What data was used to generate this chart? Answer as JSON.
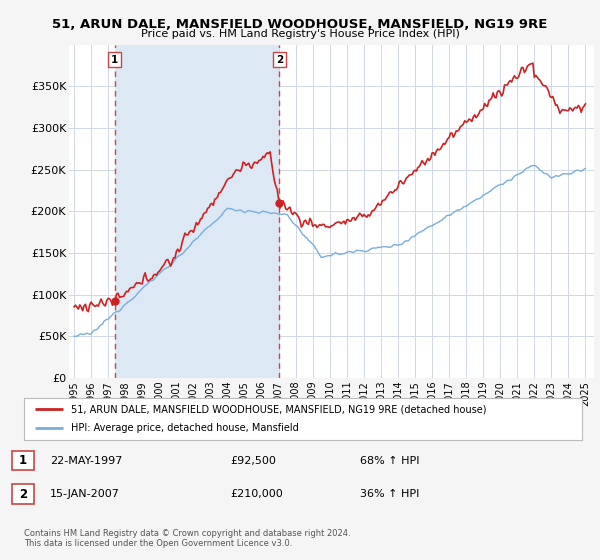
{
  "title_line1": "51, ARUN DALE, MANSFIELD WOODHOUSE, MANSFIELD, NG19 9RE",
  "title_line2": "Price paid vs. HM Land Registry's House Price Index (HPI)",
  "ylim": [
    0,
    400000
  ],
  "yticks": [
    0,
    50000,
    100000,
    150000,
    200000,
    250000,
    300000,
    350000
  ],
  "ytick_labels": [
    "£0",
    "£50K",
    "£100K",
    "£150K",
    "£200K",
    "£250K",
    "£300K",
    "£350K"
  ],
  "fig_bg_color": "#f5f5f5",
  "plot_bg_color": "#ffffff",
  "shade_color": "#dde8f5",
  "grid_color": "#d0d8e8",
  "legend_label_red": "51, ARUN DALE, MANSFIELD WOODHOUSE, MANSFIELD, NG19 9RE (detached house)",
  "legend_label_blue": "HPI: Average price, detached house, Mansfield",
  "sale1_date": "22-MAY-1997",
  "sale1_price": "£92,500",
  "sale1_hpi": "68% ↑ HPI",
  "sale2_date": "15-JAN-2007",
  "sale2_price": "£210,000",
  "sale2_hpi": "36% ↑ HPI",
  "footer1": "Contains HM Land Registry data © Crown copyright and database right 2024.",
  "footer2": "This data is licensed under the Open Government Licence v3.0.",
  "red_color": "#cc2222",
  "blue_color": "#7aaddb",
  "vline_color": "#cc4444",
  "sale1_x": 1997.38,
  "sale1_y": 92500,
  "sale2_x": 2007.04,
  "sale2_y": 210000,
  "xmin": 1995,
  "xmax": 2025
}
